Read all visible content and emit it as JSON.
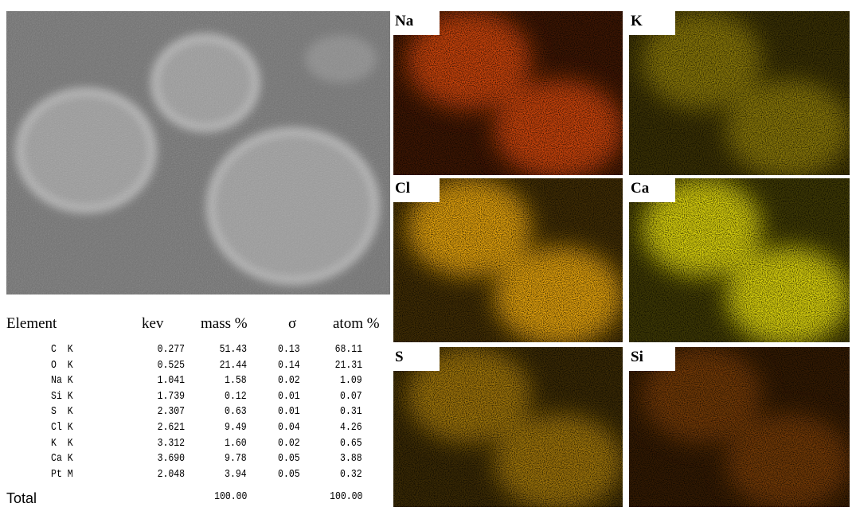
{
  "table": {
    "header": [
      "Element",
      "kev",
      "mass %",
      "σ",
      "atom %"
    ],
    "rows": [
      [
        "C  K",
        "0.277",
        "51.43",
        "0.13",
        "68.11"
      ],
      [
        "O  K",
        "0.525",
        "21.44",
        "0.14",
        "21.31"
      ],
      [
        "Na K",
        "1.041",
        "1.58",
        "0.02",
        "1.09"
      ],
      [
        "Si K",
        "1.739",
        "0.12",
        "0.01",
        "0.07"
      ],
      [
        "S  K",
        "2.307",
        "0.63",
        "0.01",
        "0.31"
      ],
      [
        "Cl K",
        "2.621",
        "9.49",
        "0.04",
        "4.26"
      ],
      [
        "K  K",
        "3.312",
        "1.60",
        "0.02",
        "0.65"
      ],
      [
        "Ca K",
        "3.690",
        "9.78",
        "0.05",
        "3.88"
      ],
      [
        "Pt M",
        "2.048",
        "3.94",
        "0.05",
        "0.32"
      ]
    ],
    "total": [
      "Total",
      "100.00",
      "100.00"
    ]
  },
  "maps": [
    {
      "label": "Na"
    },
    {
      "label": "K"
    },
    {
      "label": "Cl"
    },
    {
      "label": "Ca"
    },
    {
      "label": "S"
    },
    {
      "label": "Si"
    }
  ]
}
